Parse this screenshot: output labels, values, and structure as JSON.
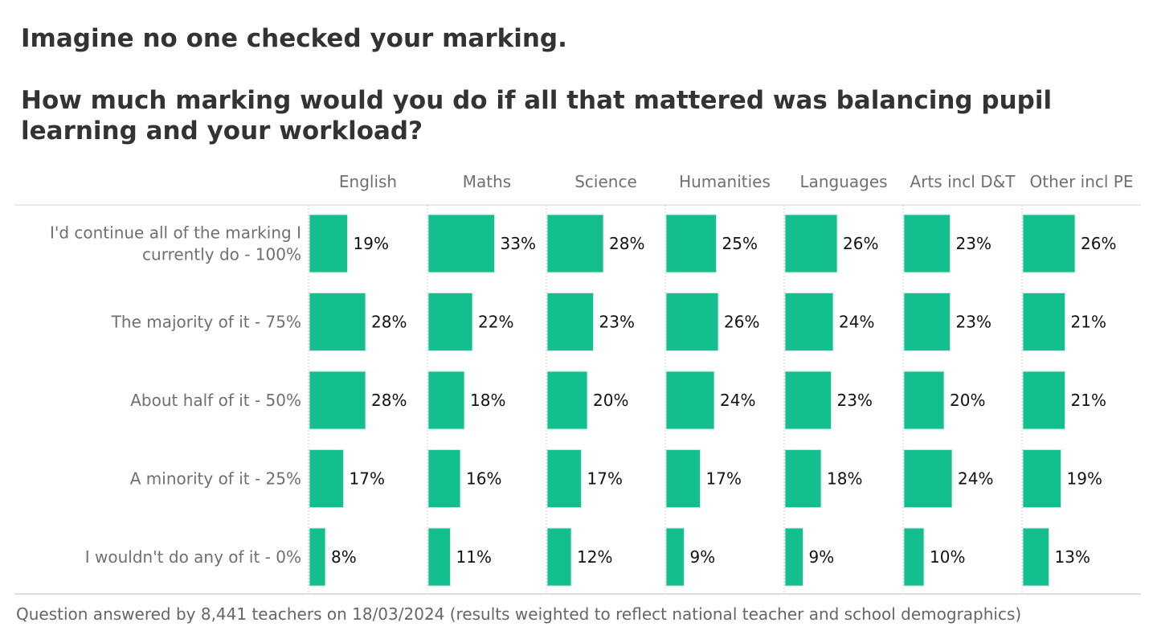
{
  "title": "Imagine no one checked your marking.",
  "subtitle_line1": "How much marking would you do if all that mattered was balancing pupil",
  "subtitle_line2": "learning and your workload?",
  "footnote": "Question answered by 8,441 teachers on 18/03/2024 (results weighted to reflect national teacher and school demographics)",
  "colors": {
    "bar": "#14bf8f",
    "bar_edge": "#cfe8df",
    "text_dark": "#111111",
    "text_muted": "#707070",
    "grid": "#d4d4d4"
  },
  "chart_data": {
    "type": "bar",
    "orientation": "horizontal",
    "layout": "small-multiples",
    "categories": [
      "I'd continue all of the marking I currently do - 100%",
      "The majority of it - 75%",
      "About half of it - 50%",
      "A minority of it - 25%",
      "I wouldn't do any of it - 0%"
    ],
    "category_lines": [
      [
        "I'd continue all of the marking I",
        "currently do - 100%"
      ],
      [
        "The majority of it - 75%"
      ],
      [
        "About half of it - 50%"
      ],
      [
        "A minority of it - 25%"
      ],
      [
        "I wouldn't do any of it - 0%"
      ]
    ],
    "series": [
      {
        "name": "English",
        "values": [
          19,
          28,
          28,
          17,
          8
        ]
      },
      {
        "name": "Maths",
        "values": [
          33,
          22,
          18,
          16,
          11
        ]
      },
      {
        "name": "Science",
        "values": [
          28,
          23,
          20,
          17,
          12
        ]
      },
      {
        "name": "Humanities",
        "values": [
          25,
          26,
          24,
          17,
          9
        ]
      },
      {
        "name": "Languages",
        "values": [
          26,
          24,
          23,
          18,
          9
        ]
      },
      {
        "name": "Arts incl D&T",
        "values": [
          23,
          23,
          20,
          24,
          10
        ]
      },
      {
        "name": "Other incl PE",
        "values": [
          26,
          21,
          21,
          19,
          13
        ]
      }
    ],
    "value_suffix": "%",
    "xlim": [
      0,
      100
    ],
    "grid": false,
    "legend": "none"
  }
}
